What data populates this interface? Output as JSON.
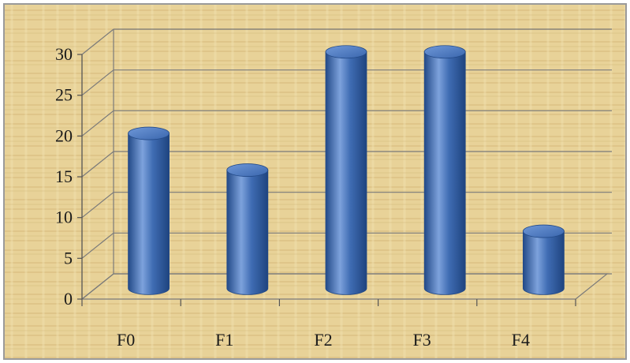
{
  "colors": {
    "background": "#e9d39a",
    "bar": "#3f6cb3",
    "bar_dark": "#234a88",
    "bar_light": "#7da2dc",
    "bar_top": "#5a86cc",
    "grid": "#7a7a7a"
  },
  "chart_data": {
    "type": "bar",
    "style": "3d-cylinder",
    "categories": [
      "F0",
      "F1",
      "F2",
      "F3",
      "F4"
    ],
    "values": [
      19,
      14.5,
      29,
      29,
      7
    ],
    "ylim": [
      0,
      30
    ],
    "yticks": [
      "0",
      "5",
      "10",
      "15",
      "20",
      "25",
      "30"
    ],
    "grid": true,
    "legend": false
  }
}
